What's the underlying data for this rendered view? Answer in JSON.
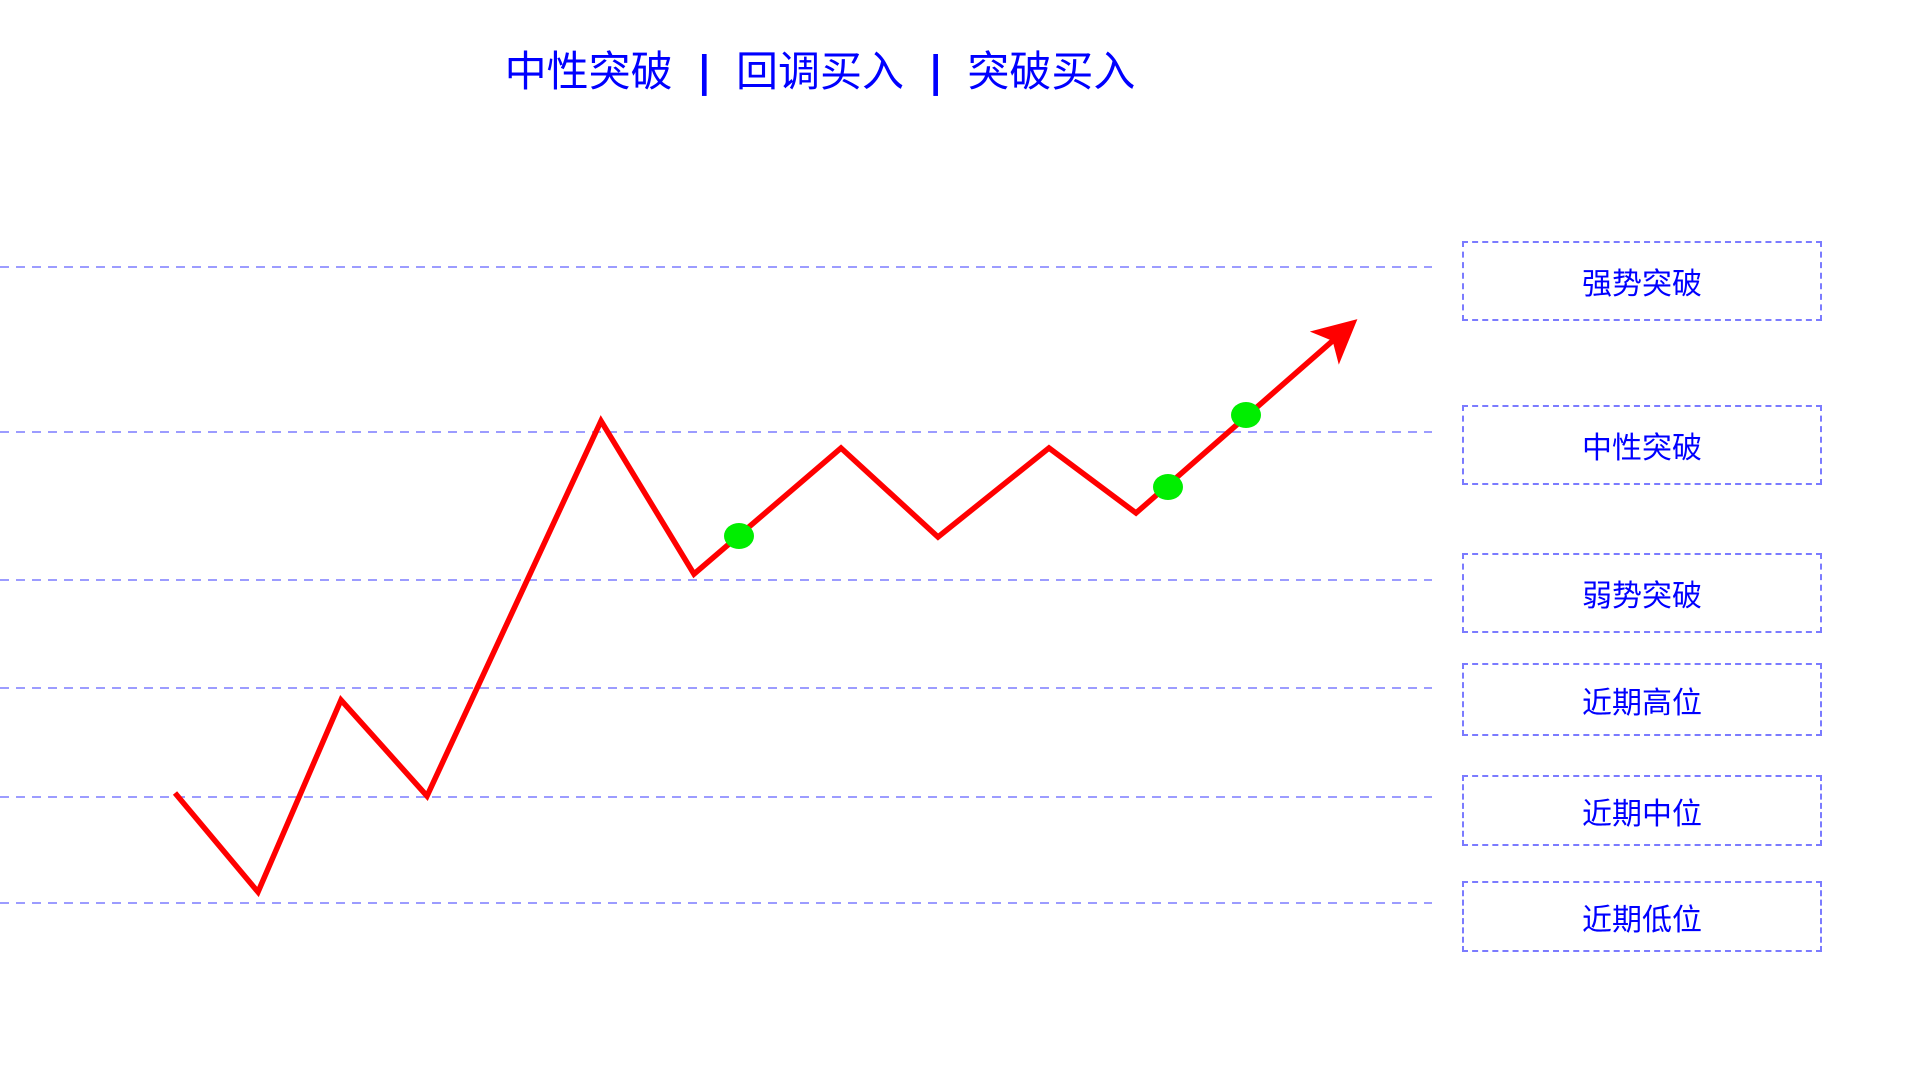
{
  "title": {
    "parts": [
      "中性突破",
      "回调买入",
      "突破买入"
    ],
    "separator": "|"
  },
  "levels": [
    {
      "label": "强势突破"
    },
    {
      "label": "中性突破"
    },
    {
      "label": "弱势突破"
    },
    {
      "label": "近期高位"
    },
    {
      "label": "近期中位"
    },
    {
      "label": "近期低位"
    }
  ],
  "colors": {
    "title": "#0000ff",
    "level_line": "#7b7bff",
    "price_path": "#ff0000",
    "buy_point": "#00ee00"
  },
  "buy_points_count": 3
}
